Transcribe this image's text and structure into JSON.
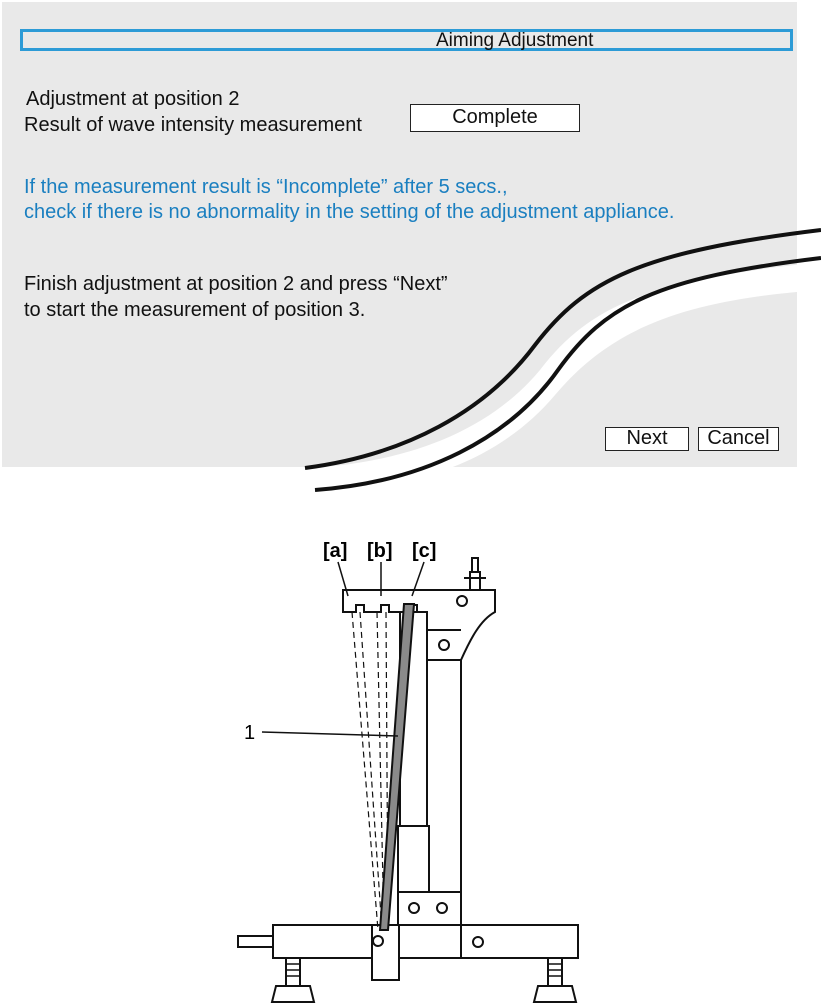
{
  "dialog": {
    "title": "Aiming Adjustment",
    "line_position": "Adjustment at position 2",
    "line_result_label": "Result of wave intensity measurement",
    "result_value": "Complete",
    "warning_line1": "If the measurement result is “Incomplete” after 5 secs.,",
    "warning_line2": "check if there is no abnormality in the setting of the adjustment appliance.",
    "instruction_line1": "Finish adjustment at position 2 and press “Next”",
    "instruction_line2": "to start the measurement of position 3.",
    "next_label": "Next",
    "cancel_label": "Cancel"
  },
  "figure": {
    "labels": [
      "[a]",
      "[b]",
      "[c]"
    ],
    "callout": "1"
  },
  "colors": {
    "panel_bg": "#e9e9e9",
    "title_border": "#2d9bd6",
    "warning_text": "#1a7fc0"
  }
}
